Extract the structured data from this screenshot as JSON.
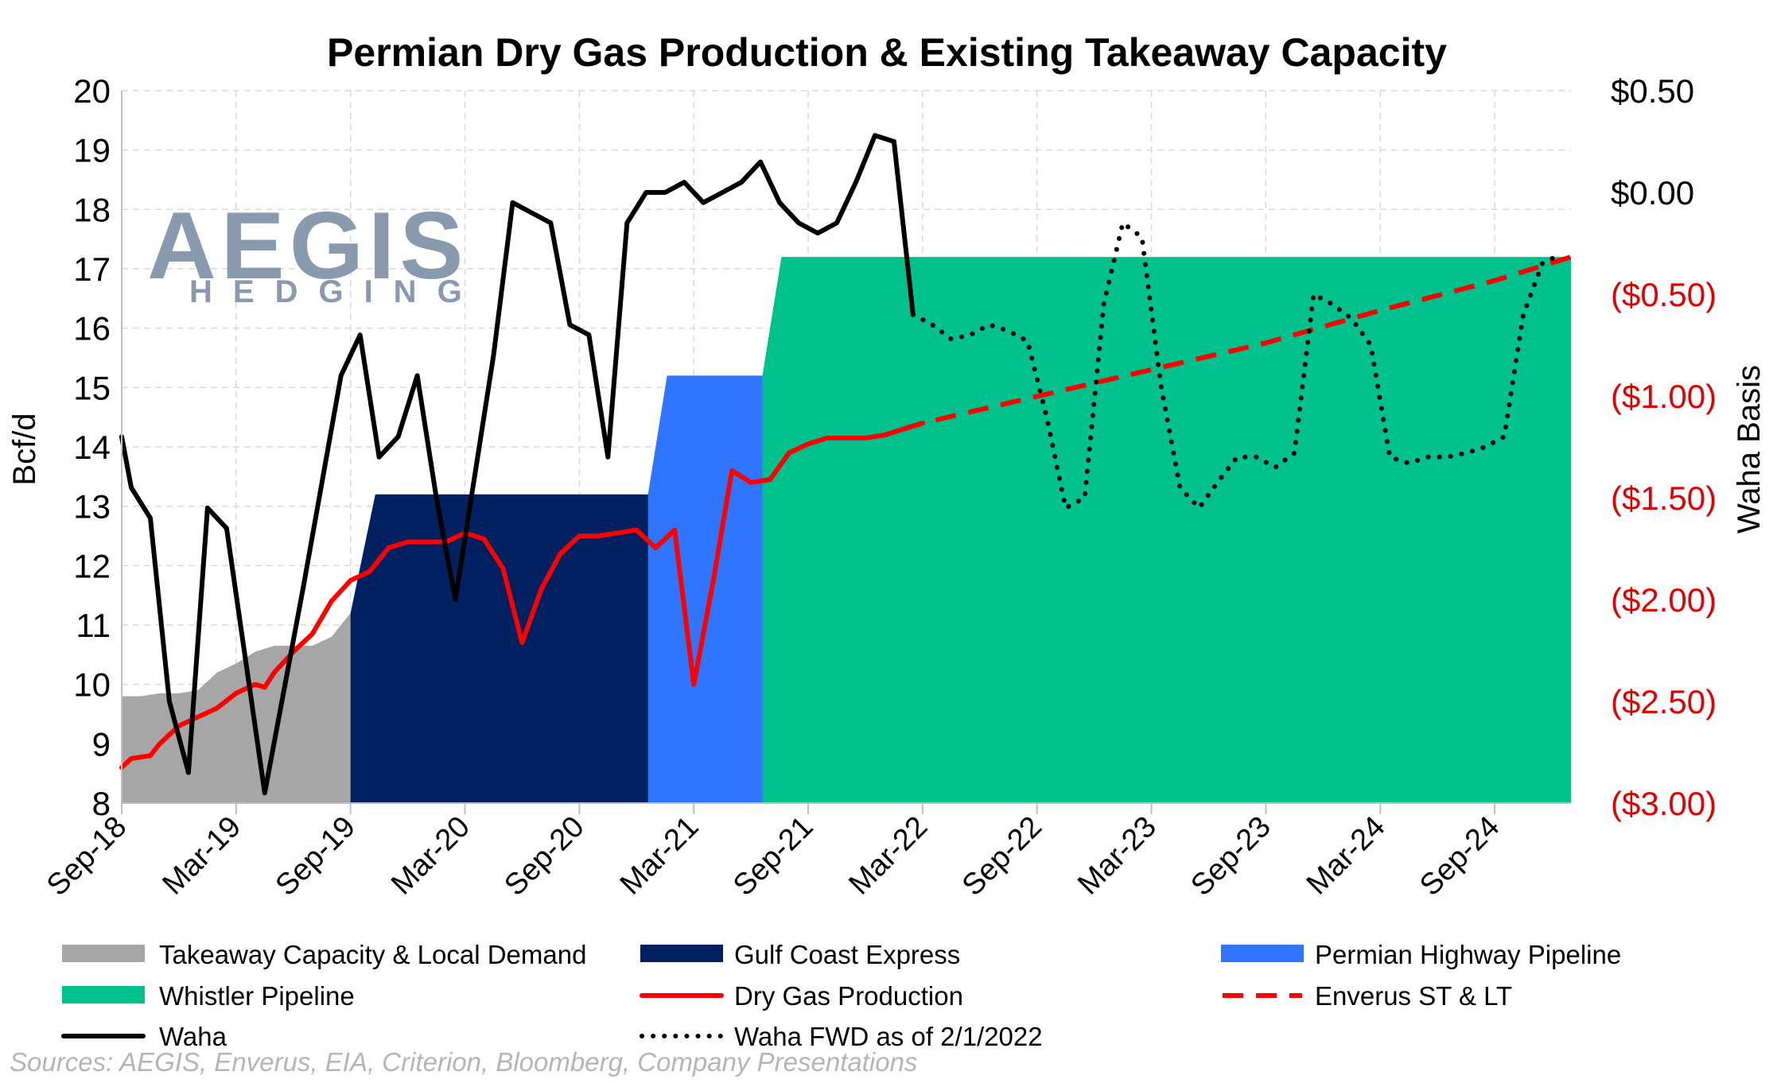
{
  "chart_data": {
    "type": "area",
    "title": "Permian Dry Gas Production & Existing Takeaway Capacity",
    "ylabel": "Bcf/d",
    "y2label": "Waha Basis",
    "ylim": [
      8,
      20
    ],
    "y2lim": [
      -3.0,
      0.5
    ],
    "yticks": [
      "8",
      "9",
      "10",
      "11",
      "12",
      "13",
      "14",
      "15",
      "16",
      "17",
      "18",
      "19",
      "20"
    ],
    "y2ticks": [
      {
        "label": "($3.00)",
        "value": -3.0,
        "color": "#e00000"
      },
      {
        "label": "($2.50)",
        "value": -2.5,
        "color": "#e00000"
      },
      {
        "label": "($2.00)",
        "value": -2.0,
        "color": "#e00000"
      },
      {
        "label": "($1.50)",
        "value": -1.5,
        "color": "#e00000"
      },
      {
        "label": "($1.00)",
        "value": -1.0,
        "color": "#e00000"
      },
      {
        "label": "($0.50)",
        "value": -0.5,
        "color": "#e00000"
      },
      {
        "label": "$0.00",
        "value": 0.0,
        "color": "#000000"
      },
      {
        "label": "$0.50",
        "value": 0.5,
        "color": "#000000"
      }
    ],
    "x_start": "Sep-18",
    "xlim": [
      0,
      76
    ],
    "xticks": [
      {
        "label": "Sep-18",
        "x": 0
      },
      {
        "label": "Mar-19",
        "x": 6
      },
      {
        "label": "Sep-19",
        "x": 12
      },
      {
        "label": "Mar-20",
        "x": 18
      },
      {
        "label": "Sep-20",
        "x": 24
      },
      {
        "label": "Mar-21",
        "x": 30
      },
      {
        "label": "Sep-21",
        "x": 36
      },
      {
        "label": "Mar-22",
        "x": 42
      },
      {
        "label": "Sep-22",
        "x": 48
      },
      {
        "label": "Mar-23",
        "x": 54
      },
      {
        "label": "Sep-23",
        "x": 60
      },
      {
        "label": "Mar-24",
        "x": 66
      },
      {
        "label": "Sep-24",
        "x": 72
      }
    ],
    "grid": true,
    "legend_position": "bottom",
    "areas": [
      {
        "name": "Takeaway Capacity & Local Demand",
        "color": "#a6a6a6",
        "points": [
          [
            0,
            9.8
          ],
          [
            1,
            9.8
          ],
          [
            2,
            9.85
          ],
          [
            3,
            9.85
          ],
          [
            4,
            9.9
          ],
          [
            5,
            10.2
          ],
          [
            6,
            10.35
          ],
          [
            7,
            10.55
          ],
          [
            8,
            10.65
          ],
          [
            9,
            10.65
          ],
          [
            10,
            10.65
          ],
          [
            11,
            10.8
          ],
          [
            12,
            11.2
          ],
          [
            76,
            11.2
          ]
        ]
      },
      {
        "name": "Gulf Coast Express",
        "color": "#002060",
        "points": [
          [
            12,
            11.2
          ],
          [
            13.3,
            13.2
          ],
          [
            76,
            13.2
          ]
        ]
      },
      {
        "name": "Permian Highway Pipeline",
        "color": "#2f75ff",
        "points": [
          [
            27.6,
            13.2
          ],
          [
            28.6,
            15.2
          ],
          [
            76,
            15.2
          ]
        ]
      },
      {
        "name": "Whistler Pipeline",
        "color": "#00c08b",
        "points": [
          [
            33.6,
            15.2
          ],
          [
            34.6,
            17.2
          ],
          [
            76,
            17.2
          ]
        ]
      }
    ],
    "series": [
      {
        "name": "Dry Gas Production",
        "axis": "left",
        "color": "#ff0000",
        "style": "solid",
        "x": [
          0,
          0.5,
          1.5,
          2,
          3,
          4,
          5,
          6,
          7,
          7.5,
          8,
          9,
          10,
          11,
          12,
          13,
          14,
          15,
          16,
          17,
          18,
          18.5,
          19,
          20,
          21,
          22,
          23,
          24,
          25,
          26,
          27,
          28,
          29,
          30,
          31,
          32,
          33,
          34,
          35,
          36,
          37,
          38,
          39,
          40,
          41,
          42
        ],
        "y": [
          8.6,
          8.75,
          8.8,
          9.0,
          9.3,
          9.45,
          9.6,
          9.85,
          10.0,
          9.95,
          10.2,
          10.55,
          10.85,
          11.4,
          11.75,
          11.9,
          12.3,
          12.4,
          12.4,
          12.4,
          12.55,
          12.5,
          12.45,
          11.95,
          10.7,
          11.6,
          12.2,
          12.5,
          12.5,
          12.55,
          12.6,
          12.3,
          12.6,
          10.0,
          11.7,
          13.6,
          13.4,
          13.45,
          13.9,
          14.05,
          14.15,
          14.15,
          14.15,
          14.2,
          14.3,
          14.4
        ]
      },
      {
        "name": "Enverus ST & LT",
        "axis": "left",
        "color": "#ff0000",
        "style": "dashed",
        "x": [
          41,
          42,
          48,
          54,
          60,
          66,
          72,
          76
        ],
        "y": [
          14.3,
          14.4,
          14.85,
          15.3,
          15.75,
          16.3,
          16.8,
          17.2
        ]
      },
      {
        "name": "Waha",
        "axis": "right",
        "color": "#000000",
        "style": "solid",
        "x": [
          0,
          0.5,
          1.5,
          2.5,
          3.5,
          4.5,
          5.5,
          7.5,
          8.5,
          9.5,
          11.5,
          12.5,
          13.5,
          14.5,
          15.5,
          16.5,
          17.5,
          18.5,
          19.5,
          20.5,
          21.5,
          22.5,
          23.5,
          24.5,
          25.5,
          26.5,
          27.5,
          28.5,
          29.5,
          30.5,
          31.5,
          32.5,
          33.5,
          34.5,
          35.5,
          36.5,
          37.5,
          38.5,
          39.5,
          40.5,
          41.5
        ],
        "y": [
          -1.2,
          -1.45,
          -1.6,
          -2.5,
          -2.85,
          -1.55,
          -1.65,
          -2.95,
          -2.45,
          -1.95,
          -0.9,
          -0.7,
          -1.3,
          -1.2,
          -0.9,
          -1.5,
          -2.0,
          -1.4,
          -0.8,
          -0.05,
          -0.1,
          -0.15,
          -0.65,
          -0.7,
          -1.3,
          -0.15,
          0.0,
          0.0,
          0.05,
          -0.05,
          0.0,
          0.05,
          0.15,
          -0.05,
          -0.15,
          -0.2,
          -0.15,
          0.05,
          0.28,
          0.25,
          -0.6
        ]
      },
      {
        "name": "Waha FWD as of 2/1/2022",
        "axis": "right",
        "color": "#000000",
        "style": "dotted",
        "x": [
          41.5,
          42.5,
          43.5,
          44.5,
          45.5,
          46.5,
          47.5,
          48.5,
          49.5,
          50.5,
          51.5,
          52.5,
          53.5,
          54.5,
          55.5,
          56.5,
          57.5,
          58.5,
          59.5,
          60.5,
          61.5,
          62.5,
          63.5,
          64.5,
          65.5,
          66.5,
          67.5,
          68.5,
          69.5,
          70.5,
          71.5,
          72.5,
          73.5,
          74.5,
          75.5
        ],
        "y": [
          -0.6,
          -0.65,
          -0.72,
          -0.7,
          -0.65,
          -0.68,
          -0.73,
          -1.1,
          -1.55,
          -1.5,
          -0.55,
          -0.15,
          -0.22,
          -0.95,
          -1.45,
          -1.55,
          -1.42,
          -1.3,
          -1.3,
          -1.35,
          -1.28,
          -0.5,
          -0.55,
          -0.62,
          -0.75,
          -1.3,
          -1.33,
          -1.3,
          -1.3,
          -1.28,
          -1.25,
          -1.2,
          -0.6,
          -0.35,
          -0.3
        ]
      }
    ],
    "legend": [
      {
        "label": "Takeaway Capacity & Local Demand",
        "kind": "box",
        "color": "#a6a6a6"
      },
      {
        "label": "Gulf Coast Express",
        "kind": "box",
        "color": "#002060"
      },
      {
        "label": "Permian Highway Pipeline",
        "kind": "box",
        "color": "#2f75ff"
      },
      {
        "label": "Whistler Pipeline",
        "kind": "box",
        "color": "#00c08b"
      },
      {
        "label": "Dry Gas Production",
        "kind": "solid",
        "color": "#ff0000"
      },
      {
        "label": "Enverus ST & LT",
        "kind": "dashed",
        "color": "#ff0000"
      },
      {
        "label": "Waha",
        "kind": "solid",
        "color": "#000000"
      },
      {
        "label": "Waha FWD as of 2/1/2022",
        "kind": "dotted",
        "color": "#000000"
      }
    ]
  },
  "logo": {
    "main": "AEGIS",
    "sub": "HEDGING"
  },
  "source_note": "Sources: AEGIS, Enverus, EIA, Criterion, Bloomberg, Company Presentations"
}
